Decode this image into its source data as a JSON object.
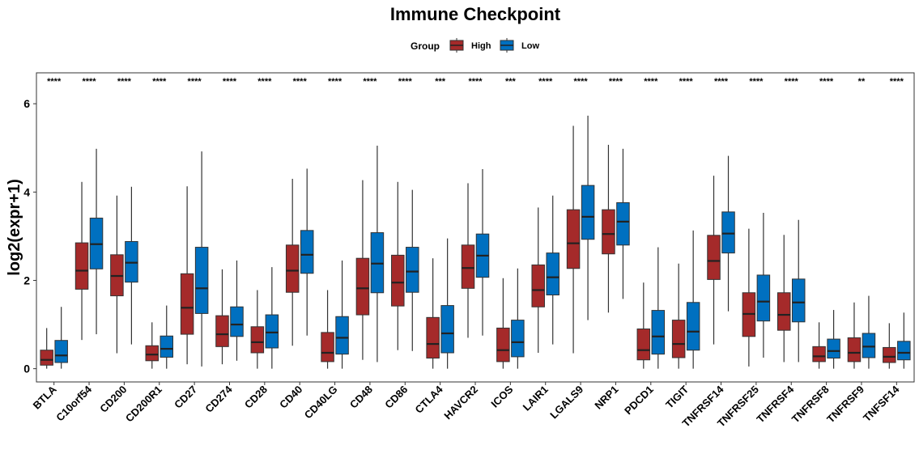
{
  "chart_data": {
    "type": "boxplot",
    "title": "Immune Checkpoint",
    "ylabel": "log2(expr+1)",
    "xlabel": "",
    "ylim": [
      -0.3,
      6.7
    ],
    "yticks": [
      0,
      2,
      4,
      6
    ],
    "legend": {
      "title": "Group",
      "placement": "top",
      "entries": [
        {
          "name": "High",
          "color": "#A52A2A"
        },
        {
          "name": "Low",
          "color": "#0070C0"
        }
      ]
    },
    "categories": [
      "BTLA",
      "C10orf54",
      "CD200",
      "CD200R1",
      "CD27",
      "CD274",
      "CD28",
      "CD40",
      "CD40LG",
      "CD48",
      "CD86",
      "CTLA4",
      "HAVCR2",
      "ICOS",
      "LAIR1",
      "LGALS9",
      "NRP1",
      "PDCD1",
      "TIGIT",
      "TNFRSF14",
      "TNFRSF25",
      "TNFRSF4",
      "TNFRSF8",
      "TNFRSF9",
      "TNFSF14"
    ],
    "significance": [
      "****",
      "****",
      "****",
      "****",
      "****",
      "****",
      "****",
      "****",
      "****",
      "****",
      "****",
      "***",
      "****",
      "***",
      "****",
      "****",
      "****",
      "****",
      "****",
      "****",
      "****",
      "****",
      "****",
      "**",
      "****"
    ],
    "series": [
      {
        "name": "High",
        "color": "#A52A2A",
        "boxes": [
          {
            "min": 0.0,
            "q1": 0.08,
            "median": 0.2,
            "q3": 0.42,
            "max": 0.92
          },
          {
            "min": 0.65,
            "q1": 1.8,
            "median": 2.22,
            "q3": 2.85,
            "max": 4.23
          },
          {
            "min": 0.35,
            "q1": 1.65,
            "median": 2.1,
            "q3": 2.58,
            "max": 3.92
          },
          {
            "min": 0.0,
            "q1": 0.18,
            "median": 0.32,
            "q3": 0.52,
            "max": 1.05
          },
          {
            "min": 0.1,
            "q1": 0.78,
            "median": 1.38,
            "q3": 2.15,
            "max": 4.13
          },
          {
            "min": 0.1,
            "q1": 0.5,
            "median": 0.78,
            "q3": 1.2,
            "max": 2.25
          },
          {
            "min": 0.0,
            "q1": 0.36,
            "median": 0.6,
            "q3": 0.95,
            "max": 1.78
          },
          {
            "min": 0.52,
            "q1": 1.73,
            "median": 2.22,
            "q3": 2.8,
            "max": 4.3
          },
          {
            "min": 0.0,
            "q1": 0.16,
            "median": 0.36,
            "q3": 0.82,
            "max": 1.78
          },
          {
            "min": 0.2,
            "q1": 1.22,
            "median": 1.82,
            "q3": 2.5,
            "max": 4.27
          },
          {
            "min": 0.42,
            "q1": 1.42,
            "median": 1.95,
            "q3": 2.57,
            "max": 4.23
          },
          {
            "min": 0.0,
            "q1": 0.24,
            "median": 0.56,
            "q3": 1.16,
            "max": 2.5
          },
          {
            "min": 0.7,
            "q1": 1.82,
            "median": 2.28,
            "q3": 2.8,
            "max": 4.2
          },
          {
            "min": 0.0,
            "q1": 0.16,
            "median": 0.42,
            "q3": 0.92,
            "max": 2.05
          },
          {
            "min": 0.36,
            "q1": 1.4,
            "median": 1.78,
            "q3": 2.35,
            "max": 3.65
          },
          {
            "min": 0.35,
            "q1": 2.27,
            "median": 2.84,
            "q3": 3.6,
            "max": 5.5
          },
          {
            "min": 1.27,
            "q1": 2.6,
            "median": 3.05,
            "q3": 3.6,
            "max": 5.07
          },
          {
            "min": 0.0,
            "q1": 0.2,
            "median": 0.42,
            "q3": 0.9,
            "max": 1.95
          },
          {
            "min": 0.0,
            "q1": 0.25,
            "median": 0.56,
            "q3": 1.1,
            "max": 2.38
          },
          {
            "min": 0.55,
            "q1": 2.02,
            "median": 2.44,
            "q3": 3.02,
            "max": 4.37
          },
          {
            "min": 0.05,
            "q1": 0.73,
            "median": 1.24,
            "q3": 1.72,
            "max": 3.17
          },
          {
            "min": 0.15,
            "q1": 0.87,
            "median": 1.22,
            "q3": 1.72,
            "max": 3.03
          },
          {
            "min": 0.0,
            "q1": 0.16,
            "median": 0.28,
            "q3": 0.5,
            "max": 1.05
          },
          {
            "min": 0.0,
            "q1": 0.16,
            "median": 0.36,
            "q3": 0.7,
            "max": 1.5
          },
          {
            "min": 0.0,
            "q1": 0.14,
            "median": 0.27,
            "q3": 0.48,
            "max": 1.03
          }
        ]
      },
      {
        "name": "Low",
        "color": "#0070C0",
        "boxes": [
          {
            "min": 0.0,
            "q1": 0.14,
            "median": 0.3,
            "q3": 0.64,
            "max": 1.4
          },
          {
            "min": 0.78,
            "q1": 2.26,
            "median": 2.82,
            "q3": 3.41,
            "max": 4.98
          },
          {
            "min": 0.55,
            "q1": 1.96,
            "median": 2.4,
            "q3": 2.88,
            "max": 4.12
          },
          {
            "min": 0.0,
            "q1": 0.26,
            "median": 0.45,
            "q3": 0.74,
            "max": 1.43
          },
          {
            "min": 0.05,
            "q1": 1.25,
            "median": 1.82,
            "q3": 2.75,
            "max": 4.92
          },
          {
            "min": 0.18,
            "q1": 0.73,
            "median": 1.0,
            "q3": 1.4,
            "max": 2.45
          },
          {
            "min": 0.0,
            "q1": 0.47,
            "median": 0.82,
            "q3": 1.22,
            "max": 2.3
          },
          {
            "min": 0.75,
            "q1": 2.16,
            "median": 2.58,
            "q3": 3.13,
            "max": 4.53
          },
          {
            "min": 0.0,
            "q1": 0.33,
            "median": 0.7,
            "q3": 1.18,
            "max": 2.45
          },
          {
            "min": 0.15,
            "q1": 1.72,
            "median": 2.38,
            "q3": 3.08,
            "max": 5.05
          },
          {
            "min": 0.4,
            "q1": 1.73,
            "median": 2.2,
            "q3": 2.75,
            "max": 4.05
          },
          {
            "min": 0.0,
            "q1": 0.36,
            "median": 0.8,
            "q3": 1.43,
            "max": 2.95
          },
          {
            "min": 0.75,
            "q1": 2.07,
            "median": 2.56,
            "q3": 3.05,
            "max": 4.52
          },
          {
            "min": 0.0,
            "q1": 0.27,
            "median": 0.6,
            "q3": 1.1,
            "max": 2.27
          },
          {
            "min": 0.55,
            "q1": 1.67,
            "median": 2.07,
            "q3": 2.62,
            "max": 3.92
          },
          {
            "min": 1.1,
            "q1": 2.93,
            "median": 3.44,
            "q3": 4.15,
            "max": 5.73
          },
          {
            "min": 1.58,
            "q1": 2.8,
            "median": 3.33,
            "q3": 3.76,
            "max": 4.98
          },
          {
            "min": 0.0,
            "q1": 0.33,
            "median": 0.73,
            "q3": 1.32,
            "max": 2.75
          },
          {
            "min": 0.0,
            "q1": 0.42,
            "median": 0.84,
            "q3": 1.5,
            "max": 3.13
          },
          {
            "min": 1.3,
            "q1": 2.62,
            "median": 3.06,
            "q3": 3.55,
            "max": 4.82
          },
          {
            "min": 0.25,
            "q1": 1.08,
            "median": 1.52,
            "q3": 2.12,
            "max": 3.53
          },
          {
            "min": 0.15,
            "q1": 1.06,
            "median": 1.5,
            "q3": 2.03,
            "max": 3.37
          },
          {
            "min": 0.0,
            "q1": 0.24,
            "median": 0.4,
            "q3": 0.67,
            "max": 1.33
          },
          {
            "min": 0.0,
            "q1": 0.25,
            "median": 0.5,
            "q3": 0.8,
            "max": 1.65
          },
          {
            "min": 0.0,
            "q1": 0.2,
            "median": 0.36,
            "q3": 0.62,
            "max": 1.27
          }
        ]
      }
    ]
  }
}
